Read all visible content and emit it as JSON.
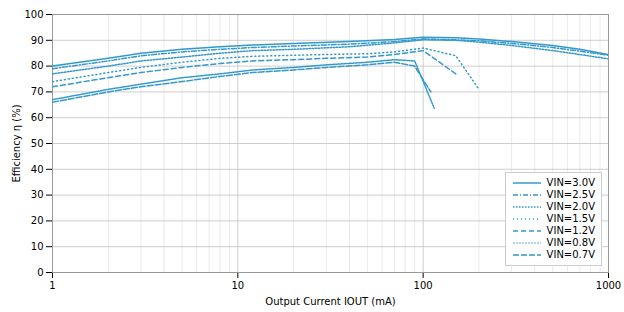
{
  "chart_data": {
    "type": "line",
    "xlabel": "Output Current IOUT (mA)",
    "ylabel": "Efficiency η (%)",
    "color": "#3399cc",
    "log": "x",
    "grid": true,
    "legend": "lower right",
    "xlim": [
      1,
      1000
    ],
    "xticks": [
      1,
      10,
      100,
      1000
    ],
    "ylim": [
      0,
      100
    ],
    "yticks": [
      0,
      10,
      20,
      30,
      40,
      50,
      60,
      70,
      80,
      90,
      100
    ],
    "series": [
      {
        "name": "VIN=3.0V",
        "line_style": "solid",
        "x": [
          1,
          2,
          3,
          5,
          8,
          12,
          20,
          40,
          70,
          100,
          150,
          200,
          300,
          500,
          700,
          1000
        ],
        "values": [
          80,
          83,
          85,
          86.5,
          87.5,
          88.2,
          88.8,
          89.5,
          90.3,
          91.2,
          91.0,
          90.5,
          89.5,
          88.0,
          86.5,
          84.5
        ]
      },
      {
        "name": "VIN=2.5V",
        "line_style": "dashdot",
        "x": [
          1,
          2,
          3,
          5,
          8,
          12,
          20,
          40,
          70,
          100,
          150,
          200,
          300,
          500,
          700,
          1000
        ],
        "values": [
          79,
          82,
          84,
          85.5,
          86.5,
          87.2,
          87.8,
          88.5,
          89.5,
          90.5,
          90.2,
          89.8,
          88.8,
          87.2,
          85.8,
          84.2
        ]
      },
      {
        "name": "VIN=2.0V",
        "line_style": "dotted",
        "x": [
          1,
          2,
          3,
          5,
          8,
          12,
          20,
          40,
          70,
          100,
          150,
          200,
          300,
          500,
          700,
          1000
        ],
        "values": [
          77,
          80,
          82,
          83.5,
          85.0,
          86.0,
          86.5,
          87.5,
          89.0,
          90.2,
          90.0,
          89.3,
          88.0,
          86.0,
          84.5,
          82.8
        ]
      },
      {
        "name": "VIN=1.5V",
        "line_style": "loosely_dotted",
        "x": [
          1,
          2,
          3,
          5,
          8,
          12,
          20,
          30,
          50,
          70,
          100,
          150,
          200
        ],
        "values": [
          74,
          77.5,
          79.5,
          81.5,
          83.0,
          83.8,
          84.2,
          84.5,
          84.8,
          85.5,
          87.0,
          84.0,
          71.0
        ]
      },
      {
        "name": "VIN=1.2V",
        "line_style": "dashed",
        "x": [
          1,
          2,
          3,
          5,
          8,
          12,
          20,
          30,
          50,
          70,
          100,
          150
        ],
        "values": [
          72,
          75.5,
          77.5,
          79.5,
          81.0,
          82.0,
          82.5,
          83.0,
          83.5,
          84.5,
          86.0,
          77.0
        ]
      },
      {
        "name": "VIN=0.8V",
        "line_style": "densely_dotted",
        "x": [
          1,
          2,
          3,
          5,
          8,
          12,
          20,
          30,
          50,
          70,
          90,
          115
        ],
        "values": [
          67,
          71,
          73,
          75.5,
          77.0,
          78.5,
          79.5,
          80.5,
          81.5,
          82.5,
          82.0,
          63.5
        ]
      },
      {
        "name": "VIN=0.7V",
        "line_style": "long_dashed",
        "x": [
          1,
          2,
          3,
          5,
          8,
          12,
          20,
          30,
          50,
          70,
          90,
          110
        ],
        "values": [
          66,
          70,
          72,
          74,
          76.0,
          77.5,
          78.5,
          79.5,
          80.5,
          81.5,
          80.0,
          70.0
        ]
      }
    ]
  }
}
